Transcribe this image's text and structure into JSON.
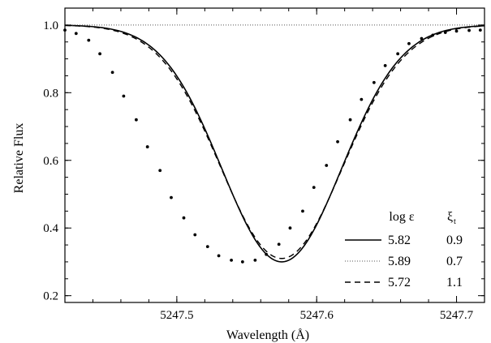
{
  "chart_data": {
    "type": "line",
    "title": "",
    "xlabel": "Wavelength (Å)",
    "ylabel": "Relative Flux",
    "xlim": [
      5247.42,
      5247.72
    ],
    "ylim": [
      0.18,
      1.05
    ],
    "x_ticks": [
      5247.5,
      5247.6,
      5247.7
    ],
    "x_tick_labels": [
      "5247.5",
      "5247.6",
      "5247.7"
    ],
    "y_ticks": [
      0.2,
      0.4,
      0.6,
      0.8,
      1.0
    ],
    "y_tick_labels": [
      "0.2",
      "0.4",
      "0.6",
      "0.8",
      "1.0"
    ],
    "legend": {
      "placement": "lower-right",
      "header": [
        "log ε",
        "ξ",
        "t"
      ],
      "entries": [
        {
          "style": "solid",
          "log_eps": "5.82",
          "xi": "0.9"
        },
        {
          "style": "dotted",
          "log_eps": "5.89",
          "xi": "0.7"
        },
        {
          "style": "dashed",
          "log_eps": "5.72",
          "xi": "1.1"
        }
      ]
    },
    "series": [
      {
        "style": "solid",
        "line": {
          "center": 5247.575,
          "depth": 0.7,
          "sigma": 0.0428
        }
      },
      {
        "style": "dotted",
        "constant": 1.0
      },
      {
        "style": "dashed",
        "line": {
          "center": 5247.575,
          "depth": 0.69,
          "sigma": 0.0438
        }
      },
      {
        "style": "points",
        "x": [
          5247.42,
          5247.428,
          5247.437,
          5247.445,
          5247.454,
          5247.462,
          5247.471,
          5247.479,
          5247.488,
          5247.496,
          5247.505,
          5247.513,
          5247.522,
          5247.53,
          5247.539,
          5247.547,
          5247.556,
          5247.564,
          5247.573,
          5247.581,
          5247.59,
          5247.598,
          5247.607,
          5247.615,
          5247.624,
          5247.632,
          5247.641,
          5247.649,
          5247.658,
          5247.666,
          5247.675,
          5247.683,
          5247.692,
          5247.7,
          5247.709,
          5247.717
        ],
        "y": [
          0.985,
          0.975,
          0.955,
          0.915,
          0.86,
          0.79,
          0.72,
          0.64,
          0.57,
          0.49,
          0.43,
          0.38,
          0.345,
          0.318,
          0.305,
          0.3,
          0.305,
          0.322,
          0.352,
          0.4,
          0.45,
          0.52,
          0.585,
          0.655,
          0.72,
          0.78,
          0.83,
          0.88,
          0.915,
          0.945,
          0.96,
          0.97,
          0.978,
          0.982,
          0.984,
          0.985
        ]
      }
    ]
  }
}
